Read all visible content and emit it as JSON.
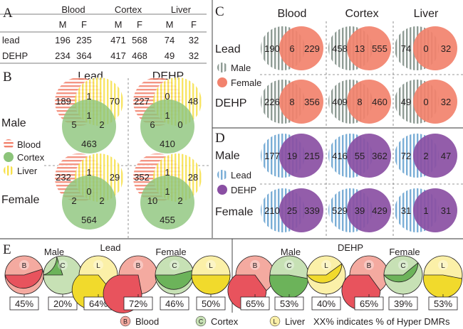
{
  "colors": {
    "blood": "#f2826d",
    "cortex": "#8cc47a",
    "liver": "#f7e04a",
    "lead": "#7aaed6",
    "dehp": "#8a4fa3",
    "pie_fill": "#e8535d",
    "pie_bg": "#f4aaa0",
    "pie_cortex_fill": "#6cb35a",
    "pie_cortex_bg": "#c7e1b5",
    "pie_liver_fill": "#f1da2c",
    "pie_liver_bg": "#fbf0a8"
  },
  "panel_a": {
    "letter": "A",
    "tissues": [
      "Blood",
      "Cortex",
      "Liver"
    ],
    "sexes": [
      "M",
      "F",
      "M",
      "F",
      "M",
      "F"
    ],
    "rows": [
      {
        "label": "lead",
        "values": [
          "196",
          "235",
          "471",
          "568",
          "74",
          "32"
        ]
      },
      {
        "label": "DEHP",
        "values": [
          "234",
          "364",
          "417",
          "468",
          "49",
          "32"
        ]
      }
    ]
  },
  "panel_b": {
    "letter": "B",
    "col_titles": [
      "Lead",
      "DEHP"
    ],
    "row_titles": [
      "Male",
      "Female"
    ],
    "legend": [
      "Blood",
      "Cortex",
      "Liver"
    ],
    "venns": [
      {
        "blood": "189",
        "blood_liver": "1",
        "liver": "70",
        "blood_cortex": "5",
        "center": "1",
        "cortex_liver": "2",
        "cortex": "463"
      },
      {
        "blood": "227",
        "blood_liver": "0",
        "liver": "48",
        "blood_cortex": "6",
        "center": "1",
        "cortex_liver": "0",
        "cortex": "410"
      },
      {
        "blood": "232",
        "blood_liver": "1",
        "liver": "29",
        "blood_cortex": "2",
        "center": "0",
        "cortex_liver": "2",
        "cortex": "564"
      },
      {
        "blood": "352",
        "blood_liver": "1",
        "liver": "28",
        "blood_cortex": "10",
        "center": "1",
        "cortex_liver": "2",
        "cortex": "455"
      }
    ]
  },
  "panel_c": {
    "letter": "C",
    "col_titles": [
      "Blood",
      "Cortex",
      "Liver"
    ],
    "row_titles": [
      "Lead",
      "DEHP"
    ],
    "legend": [
      "Male",
      "Female"
    ],
    "pairs": [
      [
        "190",
        "6",
        "229"
      ],
      [
        "458",
        "13",
        "555"
      ],
      [
        "74",
        "0",
        "32"
      ],
      [
        "226",
        "8",
        "356"
      ],
      [
        "409",
        "8",
        "460"
      ],
      [
        "49",
        "0",
        "32"
      ]
    ]
  },
  "panel_d": {
    "letter": "D",
    "row_titles": [
      "Male",
      "Female"
    ],
    "legend": [
      "Lead",
      "DEHP"
    ],
    "pairs": [
      [
        "177",
        "19",
        "215"
      ],
      [
        "416",
        "55",
        "362"
      ],
      [
        "72",
        "2",
        "47"
      ],
      [
        "210",
        "25",
        "339"
      ],
      [
        "529",
        "39",
        "429"
      ],
      [
        "31",
        "1",
        "31"
      ]
    ]
  },
  "panel_e": {
    "letter": "E",
    "group_titles": [
      "Lead",
      "DEHP"
    ],
    "sex_titles": [
      "Male",
      "Female",
      "Male",
      "Female"
    ],
    "pies": [
      {
        "tissue": "blood",
        "letter": "B",
        "percent": "45%",
        "fraction": 0.45
      },
      {
        "tissue": "cortex",
        "letter": "C",
        "percent": "20%",
        "fraction": 0.2
      },
      {
        "tissue": "liver",
        "letter": "L",
        "percent": "64%",
        "fraction": 0.64
      },
      {
        "tissue": "blood",
        "letter": "B",
        "percent": "72%",
        "fraction": 0.72
      },
      {
        "tissue": "cortex",
        "letter": "C",
        "percent": "46%",
        "fraction": 0.46
      },
      {
        "tissue": "liver",
        "letter": "L",
        "percent": "50%",
        "fraction": 0.5
      },
      {
        "tissue": "blood",
        "letter": "B",
        "percent": "65%",
        "fraction": 0.65
      },
      {
        "tissue": "cortex",
        "letter": "C",
        "percent": "53%",
        "fraction": 0.53
      },
      {
        "tissue": "liver",
        "letter": "L",
        "percent": "40%",
        "fraction": 0.4
      },
      {
        "tissue": "blood",
        "letter": "B",
        "percent": "65%",
        "fraction": 0.65
      },
      {
        "tissue": "cortex",
        "letter": "C",
        "percent": "39%",
        "fraction": 0.39
      },
      {
        "tissue": "liver",
        "letter": "L",
        "percent": "53%",
        "fraction": 0.53
      }
    ],
    "legend": [
      {
        "letter": "B",
        "label": "Blood",
        "tissue": "blood"
      },
      {
        "letter": "C",
        "label": "Cortex",
        "tissue": "cortex"
      },
      {
        "letter": "L",
        "label": "Liver",
        "tissue": "liver"
      }
    ],
    "note": "XX% indicates % of Hyper DMRs"
  }
}
